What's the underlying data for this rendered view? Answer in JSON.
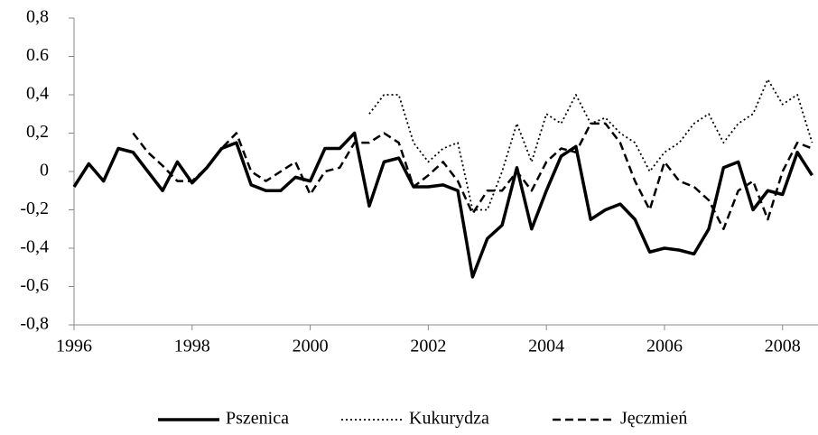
{
  "chart_data": {
    "type": "line",
    "x": [
      1996,
      1996.25,
      1996.5,
      1996.75,
      1997,
      1997.25,
      1997.5,
      1997.75,
      1998,
      1998.25,
      1998.5,
      1998.75,
      1999,
      1999.25,
      1999.5,
      1999.75,
      2000,
      2000.25,
      2000.5,
      2000.75,
      2001,
      2001.25,
      2001.5,
      2001.75,
      2002,
      2002.25,
      2002.5,
      2002.75,
      2003,
      2003.25,
      2003.5,
      2003.75,
      2004,
      2004.25,
      2004.5,
      2004.75,
      2005,
      2005.25,
      2005.5,
      2005.75,
      2006,
      2006.25,
      2006.5,
      2006.75,
      2007,
      2007.25,
      2007.5,
      2007.75,
      2008,
      2008.25,
      2008.5
    ],
    "series": [
      {
        "name": "Pszenica",
        "color": "#000000",
        "dash": "solid",
        "values": [
          -0.08,
          0.04,
          -0.05,
          0.12,
          0.1,
          0.0,
          -0.1,
          0.05,
          -0.06,
          0.02,
          0.12,
          0.15,
          -0.07,
          -0.1,
          -0.1,
          -0.03,
          -0.05,
          0.12,
          0.12,
          0.2,
          -0.18,
          0.05,
          0.07,
          -0.08,
          -0.08,
          -0.07,
          -0.1,
          -0.55,
          -0.35,
          -0.28,
          0.02,
          -0.3,
          -0.1,
          0.08,
          0.13,
          -0.25,
          -0.2,
          -0.17,
          -0.25,
          -0.42,
          -0.4,
          -0.41,
          -0.43,
          -0.3,
          0.02,
          0.05,
          -0.2,
          -0.1,
          -0.12,
          0.1,
          -0.02
        ]
      },
      {
        "name": "Kukurydza",
        "color": "#000000",
        "dash": "dotted",
        "values": [
          null,
          null,
          null,
          null,
          null,
          null,
          null,
          null,
          null,
          null,
          null,
          null,
          null,
          null,
          null,
          null,
          null,
          null,
          null,
          null,
          0.3,
          0.4,
          0.4,
          0.15,
          0.05,
          0.12,
          0.15,
          -0.2,
          -0.2,
          0.0,
          0.25,
          0.05,
          0.3,
          0.25,
          0.4,
          0.25,
          0.28,
          0.2,
          0.15,
          0.0,
          0.1,
          0.15,
          0.25,
          0.3,
          0.15,
          0.25,
          0.3,
          0.48,
          0.35,
          0.4,
          0.15
        ]
      },
      {
        "name": "Jęczmień",
        "color": "#000000",
        "dash": "dashed",
        "values": [
          null,
          null,
          null,
          null,
          0.2,
          0.1,
          0.03,
          -0.05,
          -0.05,
          0.02,
          0.12,
          0.2,
          0.0,
          -0.05,
          0.0,
          0.05,
          -0.12,
          0.0,
          0.02,
          0.15,
          0.15,
          0.2,
          0.15,
          -0.08,
          -0.02,
          0.05,
          -0.05,
          -0.22,
          -0.1,
          -0.1,
          0.0,
          -0.1,
          0.05,
          0.12,
          0.1,
          0.25,
          0.25,
          0.15,
          -0.05,
          -0.2,
          0.05,
          -0.05,
          -0.08,
          -0.15,
          -0.3,
          -0.1,
          -0.05,
          -0.25,
          0.0,
          0.15,
          0.12
        ]
      }
    ],
    "xlim": [
      1996,
      2008.6
    ],
    "xticks": [
      1996,
      1998,
      2000,
      2002,
      2004,
      2006,
      2008
    ],
    "ylim": [
      -0.8,
      0.8
    ],
    "yticks": [
      {
        "value": -0.8,
        "label": "-0,8"
      },
      {
        "value": -0.6,
        "label": "-0,6"
      },
      {
        "value": -0.4,
        "label": "-0,4"
      },
      {
        "value": -0.2,
        "label": "-0,2"
      },
      0,
      {
        "value": 0.2,
        "label": "0,2"
      },
      {
        "value": 0.4,
        "label": "0,4"
      },
      {
        "value": 0.6,
        "label": "0.6"
      },
      {
        "value": 0.8,
        "label": "0,8"
      }
    ],
    "grid": false,
    "legend": "bottom"
  }
}
